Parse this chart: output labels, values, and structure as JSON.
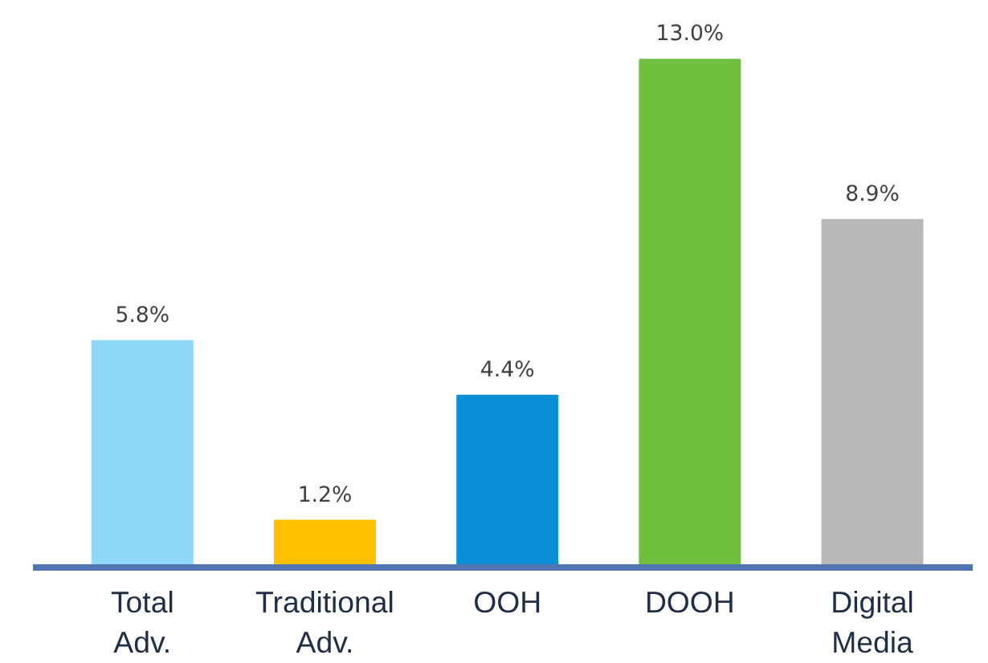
{
  "chart_data": {
    "type": "bar",
    "categories": [
      "Total\nAdv.",
      "Traditional\nAdv.",
      "OOH",
      "DOOH",
      "Digital\nMedia"
    ],
    "values": [
      5.8,
      1.2,
      4.4,
      13.0,
      8.9
    ],
    "colors": [
      "#8fd8f8",
      "#ffc000",
      "#0a8fd6",
      "#70bf3f",
      "#b8b8b8"
    ],
    "value_labels": [
      "5.8%",
      "1.2%",
      "4.4%",
      "13.0%",
      "8.9%"
    ],
    "grid": false
  }
}
